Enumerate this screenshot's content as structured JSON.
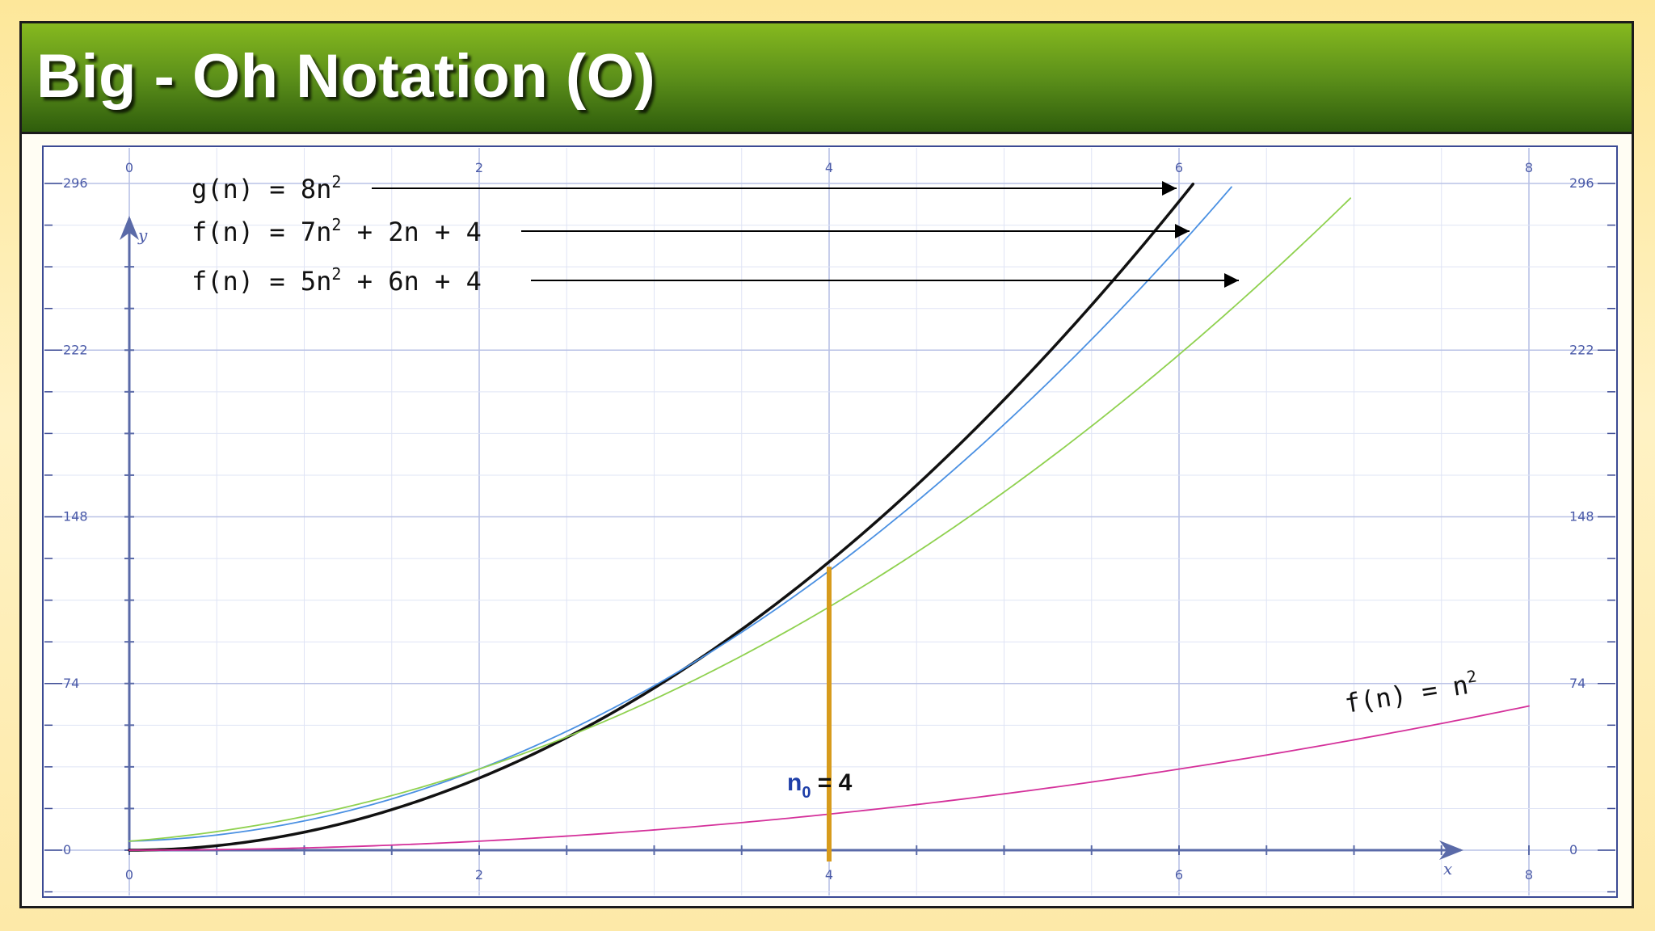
{
  "slide": {
    "title": "Big - Oh Notation (O)"
  },
  "chart_data": {
    "type": "line",
    "title": "",
    "xlabel": "x",
    "ylabel": "y",
    "xlim": [
      0,
      8
    ],
    "ylim": [
      0,
      296
    ],
    "x_ticks": [
      0,
      2,
      4,
      6,
      8
    ],
    "y_ticks": [
      0,
      74,
      148,
      222,
      296
    ],
    "grid": true,
    "series": [
      {
        "name": "g(n) = 8n²",
        "label_parts": [
          "g(n) = 8n",
          "2",
          ""
        ],
        "color": "#111111",
        "coeffs": [
          8,
          0,
          0
        ],
        "x_max": 6.08
      },
      {
        "name": "f(n) = 7n² + 2n + 4",
        "label_parts": [
          "f(n) = 7n",
          "2",
          " + 2n + 4"
        ],
        "color": "#4a90e2",
        "coeffs": [
          7,
          2,
          4
        ],
        "x_max": 6.3
      },
      {
        "name": "f(n) = 5n² + 6n + 4",
        "label_parts": [
          "f(n) = 5n",
          "2",
          " + 6n + 4"
        ],
        "color": "#8fd14f",
        "coeffs": [
          5,
          6,
          4
        ],
        "x_max": 6.98
      },
      {
        "name": "f(n) = n²",
        "label_parts": [
          "f(n) = n",
          "2",
          ""
        ],
        "color": "#d4309a",
        "coeffs": [
          1,
          0,
          0
        ],
        "x_max": 8
      }
    ],
    "annotation": {
      "x": 4,
      "main": "n",
      "sub": "0",
      "rest": " = 4",
      "color": "#d79b1c"
    }
  }
}
